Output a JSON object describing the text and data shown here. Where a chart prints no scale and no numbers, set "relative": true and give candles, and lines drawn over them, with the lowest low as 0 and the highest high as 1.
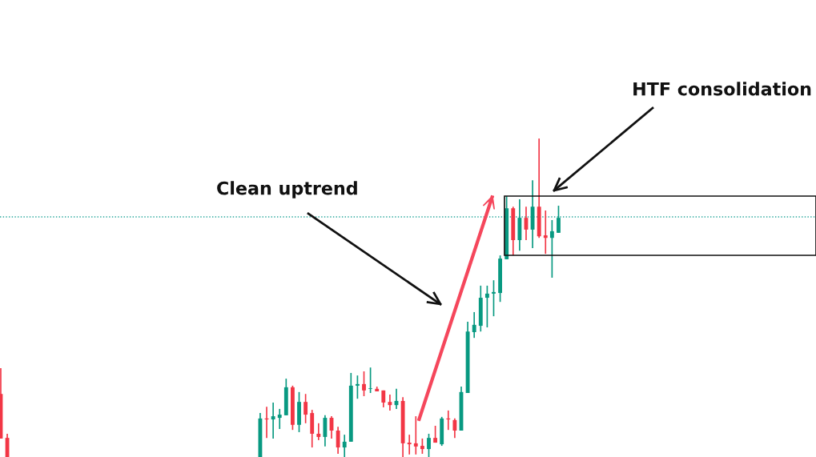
{
  "chart_data": {
    "type": "candlestick",
    "relative": true,
    "categories": [
      null,
      null,
      null,
      null,
      null,
      null,
      null,
      null,
      null,
      null,
      null,
      null,
      null,
      null,
      null,
      null,
      null,
      null,
      null,
      null,
      null,
      null,
      null,
      null,
      null,
      null,
      null,
      null,
      null,
      null,
      null,
      null,
      null,
      null,
      null,
      null,
      null,
      null,
      null,
      null,
      null,
      null,
      null,
      null,
      null,
      null,
      null,
      null,
      null,
      null,
      null,
      null,
      null,
      null,
      null,
      null,
      null,
      null,
      null,
      null,
      null,
      null,
      null,
      null,
      null,
      null,
      null,
      null,
      null,
      null,
      null,
      null,
      null,
      null,
      null,
      null,
      null,
      null,
      null,
      null,
      null,
      null,
      null,
      null,
      null,
      null,
      null,
      null,
      null,
      null,
      null,
      null,
      null,
      null,
      null,
      null,
      null,
      null,
      null,
      null,
      null,
      null,
      null,
      null,
      null,
      null,
      null,
      null,
      null,
      null,
      null,
      null,
      null,
      null,
      null,
      null,
      null,
      null,
      null,
      null,
      null,
      null,
      null,
      null,
      null,
      null
    ],
    "ohlc": [
      [
        0.198,
        0.279,
        0.058,
        0.058
      ],
      [
        0.06,
        0.073,
        0,
        0
      ],
      null,
      null,
      null,
      null,
      null,
      null,
      null,
      null,
      null,
      null,
      null,
      null,
      null,
      null,
      null,
      null,
      null,
      null,
      null,
      null,
      null,
      null,
      null,
      null,
      null,
      null,
      null,
      null,
      null,
      null,
      null,
      null,
      null,
      null,
      null,
      null,
      null,
      null,
      [
        0,
        0.138,
        0,
        0.121
      ],
      [
        0.121,
        0.158,
        0.06,
        0.118
      ],
      [
        0.118,
        0.171,
        0.058,
        0.128
      ],
      [
        0.123,
        0.151,
        0.088,
        0.133
      ],
      [
        0.131,
        0.246,
        0.131,
        0.219
      ],
      [
        0.219,
        0.224,
        0.085,
        0.101
      ],
      [
        0.101,
        0.204,
        0.078,
        0.173
      ],
      [
        0.173,
        0.198,
        0.106,
        0.133
      ],
      [
        0.138,
        0.148,
        0.03,
        0.073
      ],
      [
        0.073,
        0.106,
        0.053,
        0.063
      ],
      [
        0.063,
        0.131,
        0.033,
        0.123
      ],
      [
        0.123,
        0.128,
        0.058,
        0.083
      ],
      [
        0.083,
        0.095,
        0.01,
        0.03
      ],
      [
        0.03,
        0.07,
        0,
        0.048
      ],
      [
        0.048,
        0.264,
        0.048,
        0.224
      ],
      [
        0.224,
        0.256,
        0.183,
        0.229
      ],
      [
        0.229,
        0.269,
        0.191,
        0.209
      ],
      [
        0.214,
        0.281,
        0.201,
        0.216
      ],
      [
        0.214,
        0.221,
        0.206,
        0.206
      ],
      [
        0.209,
        0.209,
        0.156,
        0.171
      ],
      [
        0.173,
        0.196,
        0.146,
        0.163
      ],
      [
        0.163,
        0.214,
        0.151,
        0.176
      ],
      [
        0.176,
        0.188,
        0,
        0.043
      ],
      [
        0.045,
        0.07,
        0.008,
        0.04
      ],
      [
        0.043,
        0.128,
        0.008,
        0.033
      ],
      [
        0.035,
        0.058,
        0.01,
        0.025
      ],
      [
        0.025,
        0.073,
        0,
        0.06
      ],
      [
        0.06,
        0.098,
        0.045,
        0.045
      ],
      [
        0.04,
        0.126,
        0.035,
        0.121
      ],
      [
        0.121,
        0.146,
        0.085,
        0.118
      ],
      [
        0.116,
        0.121,
        0.06,
        0.083
      ],
      [
        0.083,
        0.221,
        0.083,
        0.204
      ],
      [
        0.201,
        0.425,
        0.201,
        0.394
      ],
      [
        0.392,
        0.455,
        0.374,
        0.415
      ],
      [
        0.412,
        0.538,
        0.394,
        0.5
      ],
      [
        0.5,
        0.538,
        0.407,
        0.513
      ],
      [
        0.513,
        0.555,
        0.442,
        0.518
      ],
      [
        0.515,
        0.633,
        0.487,
        0.623
      ],
      [
        0.621,
        0.819,
        0.621,
        0.781
      ],
      [
        0.781,
        0.786,
        0.633,
        0.681
      ],
      [
        0.681,
        0.809,
        0.648,
        0.751
      ],
      [
        0.751,
        0.786,
        0.681,
        0.714
      ],
      [
        0.714,
        0.869,
        0.656,
        0.786
      ],
      [
        0.786,
        1,
        0.688,
        0.693
      ],
      [
        0.696,
        0.774,
        0.638,
        0.688
      ],
      [
        0.688,
        0.744,
        0.563,
        0.709
      ],
      [
        0.704,
        0.789,
        0.704,
        0.751
      ],
      null,
      null,
      null,
      null,
      null,
      null,
      null,
      null,
      null,
      null,
      null,
      null,
      null,
      null,
      null,
      null,
      null,
      null,
      null,
      null,
      null,
      null,
      null,
      null,
      null,
      null,
      null,
      null,
      null,
      null,
      null,
      null,
      null,
      null,
      null,
      null,
      null,
      null,
      null
    ],
    "colors": [
      "#f23645",
      "#f23645",
      null,
      null,
      null,
      null,
      null,
      null,
      null,
      null,
      null,
      null,
      null,
      null,
      null,
      null,
      null,
      null,
      null,
      null,
      null,
      null,
      null,
      null,
      null,
      null,
      null,
      null,
      null,
      null,
      null,
      null,
      null,
      null,
      null,
      null,
      null,
      null,
      null,
      null,
      "#089981",
      "#f23645",
      "#089981",
      "#089981",
      "#089981",
      "#f23645",
      "#089981",
      "#f23645",
      "#f23645",
      "#f23645",
      "#089981",
      "#f23645",
      "#f23645",
      "#089981",
      "#089981",
      "#089981",
      "#f23645",
      "#089981",
      "#f23645",
      "#f23645",
      "#f23645",
      "#089981",
      "#f23645",
      "#f23645",
      "#f23645",
      "#f23645",
      "#089981",
      "#f23645",
      "#089981",
      "#f23645",
      "#f23645",
      "#089981",
      "#089981",
      "#089981",
      "#089981",
      "#089981",
      "#089981",
      "#089981",
      "#089981",
      "#f23645",
      "#089981",
      "#f23645",
      "#089981",
      "#f23645",
      "#f23645",
      "#089981",
      "#089981",
      null,
      null,
      null,
      null,
      null,
      null,
      null,
      null,
      null,
      null,
      null,
      null,
      null,
      null,
      null,
      null,
      null,
      null,
      null,
      null,
      null,
      null,
      null,
      null,
      null,
      null,
      null,
      null,
      null,
      null,
      null,
      null,
      null,
      null,
      null,
      null,
      null,
      null,
      null
    ],
    "ref_lines": [
      {
        "axis": "y",
        "value": 0.754,
        "color": "#26a69a",
        "line_style": "dotted"
      }
    ],
    "annotations": [
      "Clean uptrend",
      "HTF consolidation"
    ],
    "legend": false
  }
}
